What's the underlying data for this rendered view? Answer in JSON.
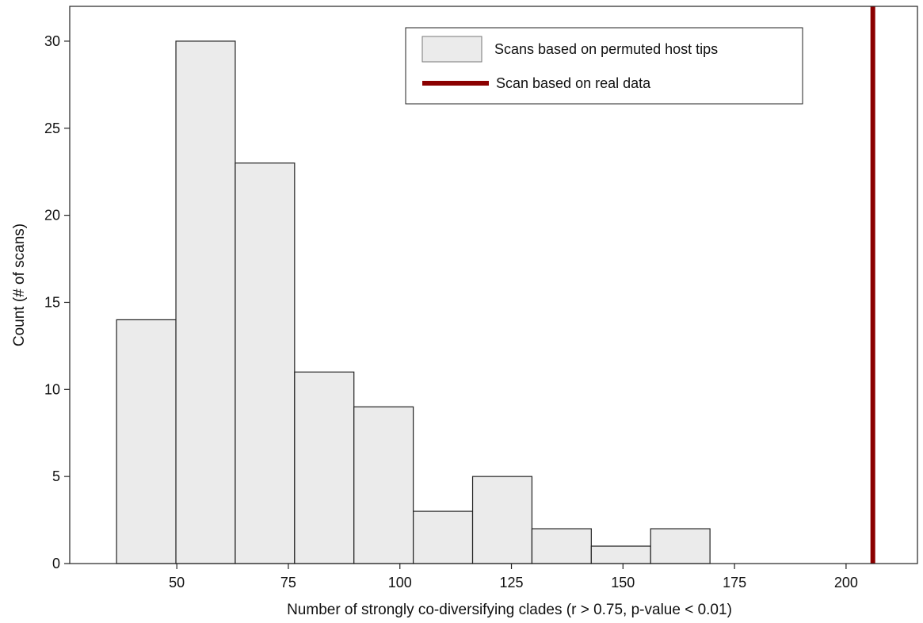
{
  "chart_data": {
    "type": "bar",
    "title": "",
    "xlabel": "Number of strongly co-diversifying clades (r > 0.75, p-value < 0.01)",
    "ylabel": "Count (# of scans)",
    "xlim": [
      26,
      216
    ],
    "ylim": [
      0,
      32
    ],
    "xticks": [
      50,
      75,
      100,
      125,
      150,
      175,
      200
    ],
    "yticks": [
      0,
      5,
      10,
      15,
      20,
      25,
      30
    ],
    "grid": false,
    "legend_position": "top-right",
    "series": [
      {
        "name": "Scans based on permuted host tips",
        "kind": "histogram",
        "color": "#ebebeb",
        "edge_color": "#222222",
        "bins": [
          {
            "x0": 36.5,
            "x1": 49.8,
            "count": 14
          },
          {
            "x0": 49.8,
            "x1": 63.1,
            "count": 30
          },
          {
            "x0": 63.1,
            "x1": 76.4,
            "count": 23
          },
          {
            "x0": 76.4,
            "x1": 89.7,
            "count": 11
          },
          {
            "x0": 89.7,
            "x1": 103.0,
            "count": 9
          },
          {
            "x0": 103.0,
            "x1": 116.3,
            "count": 3
          },
          {
            "x0": 116.3,
            "x1": 129.6,
            "count": 5
          },
          {
            "x0": 129.6,
            "x1": 142.9,
            "count": 2
          },
          {
            "x0": 142.9,
            "x1": 156.2,
            "count": 1
          },
          {
            "x0": 156.2,
            "x1": 169.5,
            "count": 2
          }
        ]
      },
      {
        "name": "Scan based on real data",
        "kind": "vline",
        "color": "#8b0000",
        "x": 206
      }
    ]
  }
}
